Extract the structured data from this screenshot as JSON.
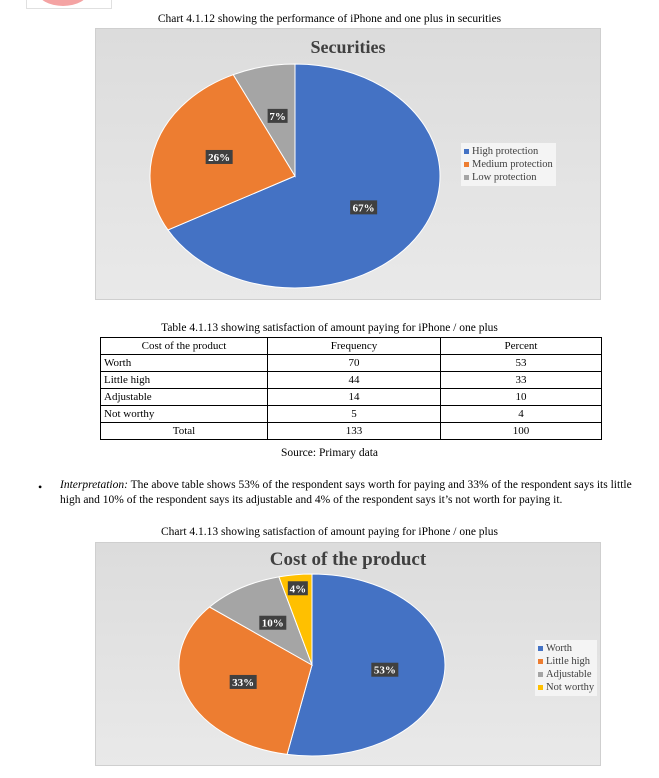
{
  "chart1": {
    "caption": "Chart 4.1.12 showing the performance of iPhone and one plus in securities",
    "chart_data": {
      "type": "pie",
      "title": "Securities",
      "categories": [
        "High protection",
        "Medium protection",
        "Low protection"
      ],
      "values": [
        67,
        26,
        7
      ],
      "labels": [
        "67%",
        "26%",
        "7%"
      ],
      "colors": [
        "#4472c4",
        "#ed7d31",
        "#a5a5a5"
      ],
      "legend": "right"
    }
  },
  "table": {
    "caption": "Table 4.1.13 showing satisfaction of amount paying for iPhone / one plus",
    "headers": [
      "Cost of the product",
      "Frequency",
      "Percent"
    ],
    "rows": [
      [
        "Worth",
        "70",
        "53"
      ],
      [
        "Little high",
        "44",
        "33"
      ],
      [
        "Adjustable",
        "14",
        "10"
      ],
      [
        "Not worthy",
        "5",
        "4"
      ],
      [
        "Total",
        "133",
        "100"
      ]
    ],
    "source": "Source: Primary data"
  },
  "interpretation": {
    "label": "Interpretation:",
    "text": " The above table shows 53% of the respondent says worth for paying and 33% of the respondent says its little high and 10% of the respondent says its adjustable and 4% of the respondent says it’s not worth for paying it."
  },
  "chart2": {
    "caption": "Chart 4.1.13 showing satisfaction of amount paying for iPhone / one plus",
    "chart_data": {
      "type": "pie",
      "title": "Cost of the product",
      "categories": [
        "Worth",
        "Little high",
        "Adjustable",
        "Not worthy"
      ],
      "values": [
        53,
        33,
        10,
        4
      ],
      "labels": [
        "53%",
        "33%",
        "10%",
        "4%"
      ],
      "colors": [
        "#4472c4",
        "#ed7d31",
        "#a5a5a5",
        "#ffc000"
      ],
      "legend": "right"
    }
  }
}
